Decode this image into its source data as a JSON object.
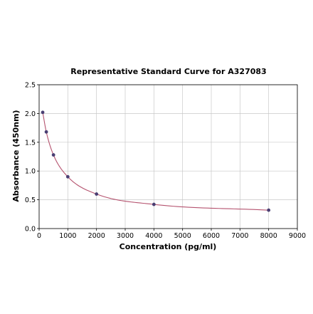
{
  "chart_data": {
    "type": "scatter",
    "title": "Representative Standard Curve for A327083",
    "xlabel": "Concentration (pg/ml)",
    "ylabel": "Absorbance (450nm)",
    "xlim": [
      0,
      9000
    ],
    "ylim": [
      0,
      2.5
    ],
    "xticks": [
      "0",
      "1000",
      "2000",
      "3000",
      "4000",
      "5000",
      "6000",
      "7000",
      "8000",
      "9000"
    ],
    "yticks": [
      "0.0",
      "0.5",
      "1.0",
      "1.5",
      "2.0",
      "2.5"
    ],
    "grid": true,
    "series": [
      {
        "points": [
          {
            "x": 125,
            "y": 2.02
          },
          {
            "x": 250,
            "y": 1.68
          },
          {
            "x": 500,
            "y": 1.28
          },
          {
            "x": 1000,
            "y": 0.9
          },
          {
            "x": 2000,
            "y": 0.6
          },
          {
            "x": 4000,
            "y": 0.42
          },
          {
            "x": 8000,
            "y": 0.32
          }
        ]
      }
    ],
    "colors": {
      "curve": "#b5536f",
      "point": "#4a3f73",
      "grid": "#c8c8c8"
    }
  }
}
